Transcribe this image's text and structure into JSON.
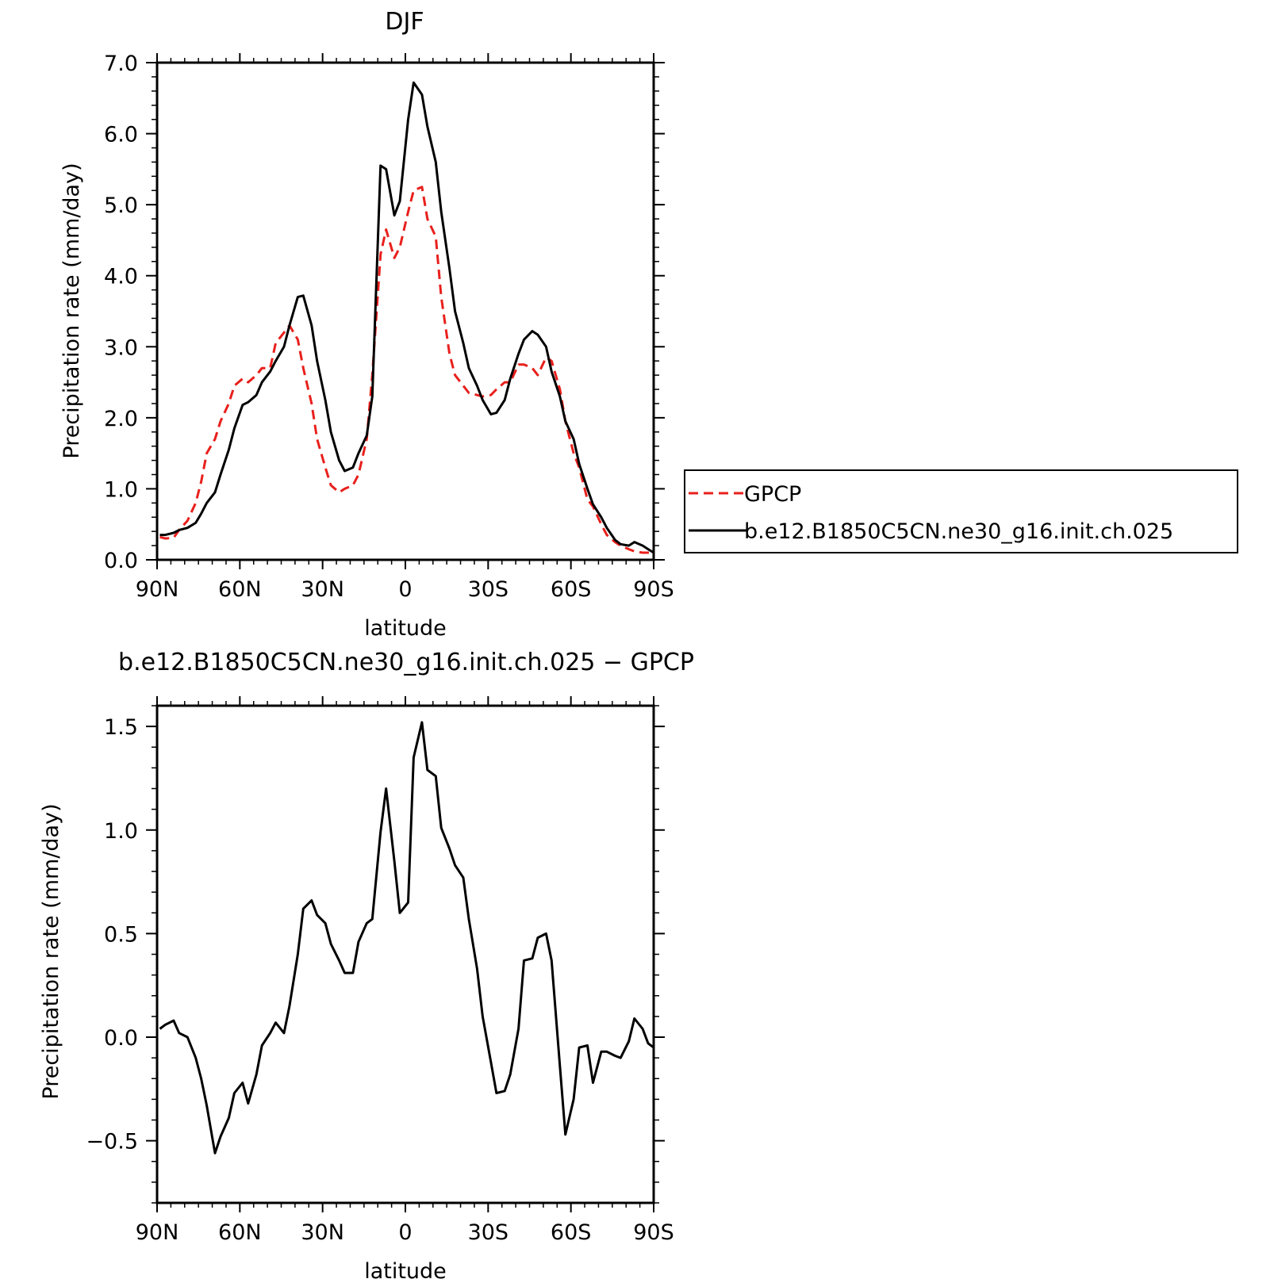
{
  "chart_data": [
    {
      "type": "line",
      "title": "DJF",
      "xlabel": "latitude",
      "ylabel": "Precipitation rate (mm/day)",
      "xlim": [
        90,
        -90
      ],
      "ylim": [
        0,
        7
      ],
      "x_ticks": [
        90,
        60,
        30,
        0,
        -30,
        -60,
        -90
      ],
      "x_tick_labels": [
        "90N",
        "60N",
        "30N",
        "0",
        "30S",
        "60S",
        "90S"
      ],
      "y_ticks": [
        0,
        1,
        2,
        3,
        4,
        5,
        6,
        7
      ],
      "y_tick_labels": [
        "0.0",
        "1.0",
        "2.0",
        "3.0",
        "4.0",
        "5.0",
        "6.0",
        "7.0"
      ],
      "grid": false,
      "legend_position": "right",
      "series": [
        {
          "name": "GPCP",
          "color": "#e8201c",
          "dash": "dashed",
          "x": [
            89,
            87,
            84,
            82,
            79,
            76,
            74,
            72,
            69,
            67,
            64,
            62,
            59,
            57,
            54,
            52,
            49,
            47,
            44,
            42,
            39,
            37,
            34,
            32,
            29,
            27,
            24,
            22,
            19,
            17,
            14,
            12,
            9,
            7,
            4,
            2,
            -1,
            -3,
            -6,
            -8,
            -11,
            -13,
            -16,
            -18,
            -21,
            -23,
            -26,
            -28,
            -31,
            -33,
            -36,
            -38,
            -41,
            -43,
            -46,
            -48,
            -51,
            -53,
            -56,
            -58,
            -61,
            -63,
            -66,
            -68,
            -71,
            -73,
            -76,
            -78,
            -81,
            -83,
            -86,
            -88,
            -90
          ],
          "y": [
            0.32,
            0.3,
            0.31,
            0.42,
            0.55,
            0.8,
            1.1,
            1.5,
            1.7,
            1.95,
            2.2,
            2.45,
            2.55,
            2.5,
            2.6,
            2.7,
            2.7,
            3.05,
            3.2,
            3.3,
            3.1,
            2.7,
            2.2,
            1.7,
            1.3,
            1.05,
            0.95,
            1.0,
            1.05,
            1.2,
            1.7,
            2.6,
            4.3,
            4.65,
            4.25,
            4.4,
            4.9,
            5.2,
            5.25,
            4.8,
            4.55,
            3.7,
            2.9,
            2.6,
            2.45,
            2.35,
            2.32,
            2.3,
            2.32,
            2.4,
            2.5,
            2.5,
            2.75,
            2.75,
            2.7,
            2.6,
            2.85,
            2.8,
            2.4,
            1.95,
            1.5,
            1.3,
            0.85,
            0.75,
            0.5,
            0.35,
            0.25,
            0.2,
            0.15,
            0.12,
            0.1,
            0.1,
            0.1
          ]
        },
        {
          "name": "b.e12.B1850C5CN.ne30_g16.init.ch.025",
          "color": "#000000",
          "dash": "solid",
          "x": [
            89,
            87,
            84,
            82,
            79,
            76,
            74,
            72,
            69,
            67,
            64,
            62,
            59,
            57,
            54,
            52,
            49,
            47,
            44,
            42,
            39,
            37,
            34,
            32,
            29,
            27,
            24,
            22,
            19,
            17,
            14,
            12,
            9,
            7,
            4,
            2,
            -1,
            -3,
            -6,
            -8,
            -11,
            -13,
            -16,
            -18,
            -21,
            -23,
            -26,
            -28,
            -31,
            -33,
            -36,
            -38,
            -41,
            -43,
            -46,
            -48,
            -51,
            -53,
            -56,
            -58,
            -61,
            -63,
            -66,
            -68,
            -71,
            -73,
            -76,
            -78,
            -81,
            -83,
            -86,
            -88,
            -90
          ],
          "y": [
            0.35,
            0.35,
            0.38,
            0.42,
            0.45,
            0.52,
            0.65,
            0.8,
            0.95,
            1.2,
            1.55,
            1.85,
            2.18,
            2.22,
            2.32,
            2.5,
            2.65,
            2.8,
            3.0,
            3.3,
            3.7,
            3.72,
            3.3,
            2.8,
            2.25,
            1.8,
            1.4,
            1.25,
            1.3,
            1.5,
            1.75,
            2.3,
            5.55,
            5.5,
            4.85,
            5.05,
            6.2,
            6.72,
            6.55,
            6.1,
            5.6,
            4.9,
            4.1,
            3.5,
            3.05,
            2.7,
            2.45,
            2.25,
            2.05,
            2.07,
            2.25,
            2.55,
            2.9,
            3.1,
            3.22,
            3.17,
            3.0,
            2.65,
            2.3,
            1.95,
            1.7,
            1.35,
            1.0,
            0.78,
            0.6,
            0.45,
            0.28,
            0.22,
            0.2,
            0.25,
            0.2,
            0.15,
            0.1
          ]
        }
      ]
    },
    {
      "type": "line",
      "title": "b.e12.B1850C5CN.ne30_g16.init.ch.025 − GPCP",
      "xlabel": "latitude",
      "ylabel": "Precipitation rate (mm/day)",
      "xlim": [
        90,
        -90
      ],
      "ylim": [
        -0.8,
        1.6
      ],
      "x_ticks": [
        90,
        60,
        30,
        0,
        -30,
        -60,
        -90
      ],
      "x_tick_labels": [
        "90N",
        "60N",
        "30N",
        "0",
        "30S",
        "60S",
        "90S"
      ],
      "y_ticks": [
        -0.5,
        0,
        0.5,
        1,
        1.5
      ],
      "y_tick_labels": [
        "−0.5",
        "0.0",
        "0.5",
        "1.0",
        "1.5"
      ],
      "grid": false,
      "series": [
        {
          "color": "#000000",
          "dash": "solid",
          "x": [
            89,
            87,
            84,
            82,
            79,
            76,
            74,
            72,
            69,
            67,
            64,
            62,
            59,
            57,
            54,
            52,
            49,
            47,
            44,
            42,
            39,
            37,
            34,
            32,
            29,
            27,
            24,
            22,
            19,
            17,
            14,
            12,
            9,
            7,
            4,
            2,
            -1,
            -3,
            -6,
            -8,
            -11,
            -13,
            -16,
            -18,
            -21,
            -23,
            -26,
            -28,
            -31,
            -33,
            -36,
            -38,
            -41,
            -43,
            -46,
            -48,
            -51,
            -53,
            -56,
            -58,
            -61,
            -63,
            -66,
            -68,
            -71,
            -73,
            -76,
            -78,
            -81,
            -83,
            -86,
            -88,
            -90
          ],
          "y": [
            0.04,
            0.06,
            0.08,
            0.02,
            0.0,
            -0.1,
            -0.2,
            -0.33,
            -0.56,
            -0.48,
            -0.39,
            -0.27,
            -0.22,
            -0.32,
            -0.18,
            -0.04,
            0.02,
            0.07,
            0.02,
            0.15,
            0.4,
            0.62,
            0.66,
            0.59,
            0.55,
            0.45,
            0.37,
            0.31,
            0.31,
            0.46,
            0.55,
            0.57,
            0.99,
            1.2,
            0.85,
            0.6,
            0.65,
            1.35,
            1.52,
            1.29,
            1.26,
            1.01,
            0.91,
            0.83,
            0.77,
            0.57,
            0.33,
            0.1,
            -0.12,
            -0.27,
            -0.26,
            -0.18,
            0.04,
            0.37,
            0.38,
            0.48,
            0.5,
            0.37,
            -0.14,
            -0.47,
            -0.3,
            -0.05,
            -0.04,
            -0.22,
            -0.07,
            -0.07,
            -0.09,
            -0.1,
            -0.02,
            0.09,
            0.04,
            -0.03,
            -0.05
          ]
        }
      ]
    }
  ]
}
